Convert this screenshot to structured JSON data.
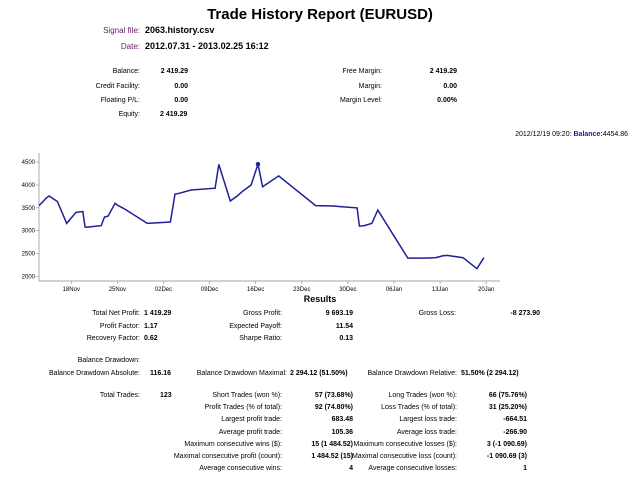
{
  "report": {
    "title": "Trade History Report (EURUSD)",
    "signal_file_label": "Signal file:",
    "signal_file_value": "2063.history.csv",
    "date_label": "Date:",
    "date_value": "2012.07.31 - 2013.02.25 16:12"
  },
  "account": {
    "balance_label": "Balance:",
    "balance_value": "2 419.29",
    "credit_label": "Credit Facility:",
    "credit_value": "0.00",
    "floating_label": "Floating P/L:",
    "floating_value": "0.00",
    "equity_label": "Equity:",
    "equity_value": "2 419.29",
    "free_margin_label": "Free Margin:",
    "free_margin_value": "2 419.29",
    "margin_label": "Margin:",
    "margin_value": "0.00",
    "margin_level_label": "Margin Level:",
    "margin_level_value": "0.00%"
  },
  "chart_header": {
    "datetime": "2012/12/19 09:20:",
    "balance_label": "Balance:",
    "balance_value": "4454.86"
  },
  "chart_data": {
    "type": "line",
    "title": "",
    "xlabel": "",
    "ylabel": "",
    "ylim": [
      1900,
      4700
    ],
    "yticks": [
      2000,
      2500,
      3000,
      3500,
      4000,
      4500
    ],
    "xticks": [
      "18Nov",
      "25Nov",
      "02Dec",
      "09Dec",
      "16Dec",
      "23Dec",
      "30Dec",
      "06Jan",
      "13Jan",
      "20Jan"
    ],
    "series": [
      {
        "name": "Balance",
        "color": "#1f1f99",
        "x": [
          0,
          0.05,
          0.1,
          0.15,
          0.22,
          0.4,
          0.6,
          0.8,
          0.95,
          1.0,
          1.05,
          1.25,
          1.35,
          1.42,
          1.5,
          1.65,
          1.7,
          1.85,
          2.35,
          2.85,
          2.95,
          3.05,
          3.3,
          3.82,
          3.9,
          4.15,
          4.3,
          4.4,
          4.6,
          4.75,
          4.85,
          5.2,
          6.0,
          6.4,
          6.5,
          6.9,
          6.95,
          7.05,
          7.22,
          7.35,
          8.0,
          8.3,
          8.6,
          8.75,
          8.85
        ],
        "values": [
          3550,
          3600,
          3650,
          3710,
          3760,
          3640,
          3160,
          3400,
          3420,
          3080,
          3080,
          3100,
          3110,
          3300,
          3320,
          3600,
          3560,
          3480,
          3160,
          3190,
          3800,
          3820,
          3890,
          3930,
          4450,
          3650,
          3760,
          3850,
          4000,
          4454.86,
          3960,
          4200,
          3550,
          3540,
          3530,
          3500,
          3100,
          3110,
          3160,
          3450,
          2400,
          2400,
          2410,
          2450,
          2460
        ]
      }
    ],
    "tail_x": [
      8.85,
      9.2,
      9.5,
      9.65
    ],
    "tail_values": [
      2460,
      2410,
      2170,
      2410
    ],
    "highlight": {
      "x": 4.75,
      "value": 4454.86
    }
  },
  "results": {
    "heading": "Results",
    "total_net_profit_label": "Total Net Profit:",
    "total_net_profit_value": "1 419.29",
    "gross_profit_label": "Gross Profit:",
    "gross_profit_value": "9 693.19",
    "gross_loss_label": "Gross Loss:",
    "gross_loss_value": "-8 273.90",
    "profit_factor_label": "Profit Factor:",
    "profit_factor_value": "1.17",
    "expected_payoff_label": "Expected Payoff:",
    "expected_payoff_value": "11.54",
    "recovery_factor_label": "Recovery Factor:",
    "recovery_factor_value": "0.62",
    "sharpe_ratio_label": "Sharpe Ratio:",
    "sharpe_ratio_value": "0.13",
    "balance_drawdown_label": "Balance Drawdown:",
    "bd_absolute_label": "Balance Drawdown Absolute:",
    "bd_absolute_value": "116.16",
    "bd_maximal_label": "Balance Drawdown Maximal:",
    "bd_maximal_value": "2 294.12 (51.50%)",
    "bd_relative_label": "Balance Drawdown Relative:",
    "bd_relative_value": "51.50% (2 294.12)",
    "total_trades_label": "Total Trades:",
    "total_trades_value": "123",
    "short_trades_label": "Short Trades (won %):",
    "short_trades_value": "57 (73.68%)",
    "long_trades_label": "Long Trades (won %):",
    "long_trades_value": "66 (75.76%)",
    "profit_trades_label": "Profit Trades (% of total):",
    "profit_trades_value": "92 (74.80%)",
    "loss_trades_label": "Loss Trades (% of total):",
    "loss_trades_value": "31 (25.20%)",
    "largest_profit_label": "Largest profit trade:",
    "largest_profit_value": "683.48",
    "largest_loss_label": "Largest loss trade:",
    "largest_loss_value": "-664.51",
    "avg_profit_label": "Average profit trade:",
    "avg_profit_value": "105.36",
    "avg_loss_label": "Average loss trade:",
    "avg_loss_value": "-266.90",
    "max_consec_wins_label": "Maximum consecutive wins ($):",
    "max_consec_wins_value": "15 (1 484.52)",
    "max_consec_losses_label": "Maximum consecutive losses ($):",
    "max_consec_losses_value": "3 (-1 090.69)",
    "maximal_consec_profit_label": "Maximal consecutive profit (count):",
    "maximal_consec_profit_value": "1 484.52 (15)",
    "maximal_consec_loss_label": "Maximal consecutive loss (count):",
    "maximal_consec_loss_value": "-1 090.69 (3)",
    "avg_consec_wins_label": "Average consecutive wins:",
    "avg_consec_wins_value": "4",
    "avg_consec_losses_label": "Average consecutive losses:",
    "avg_consec_losses_value": "1"
  }
}
